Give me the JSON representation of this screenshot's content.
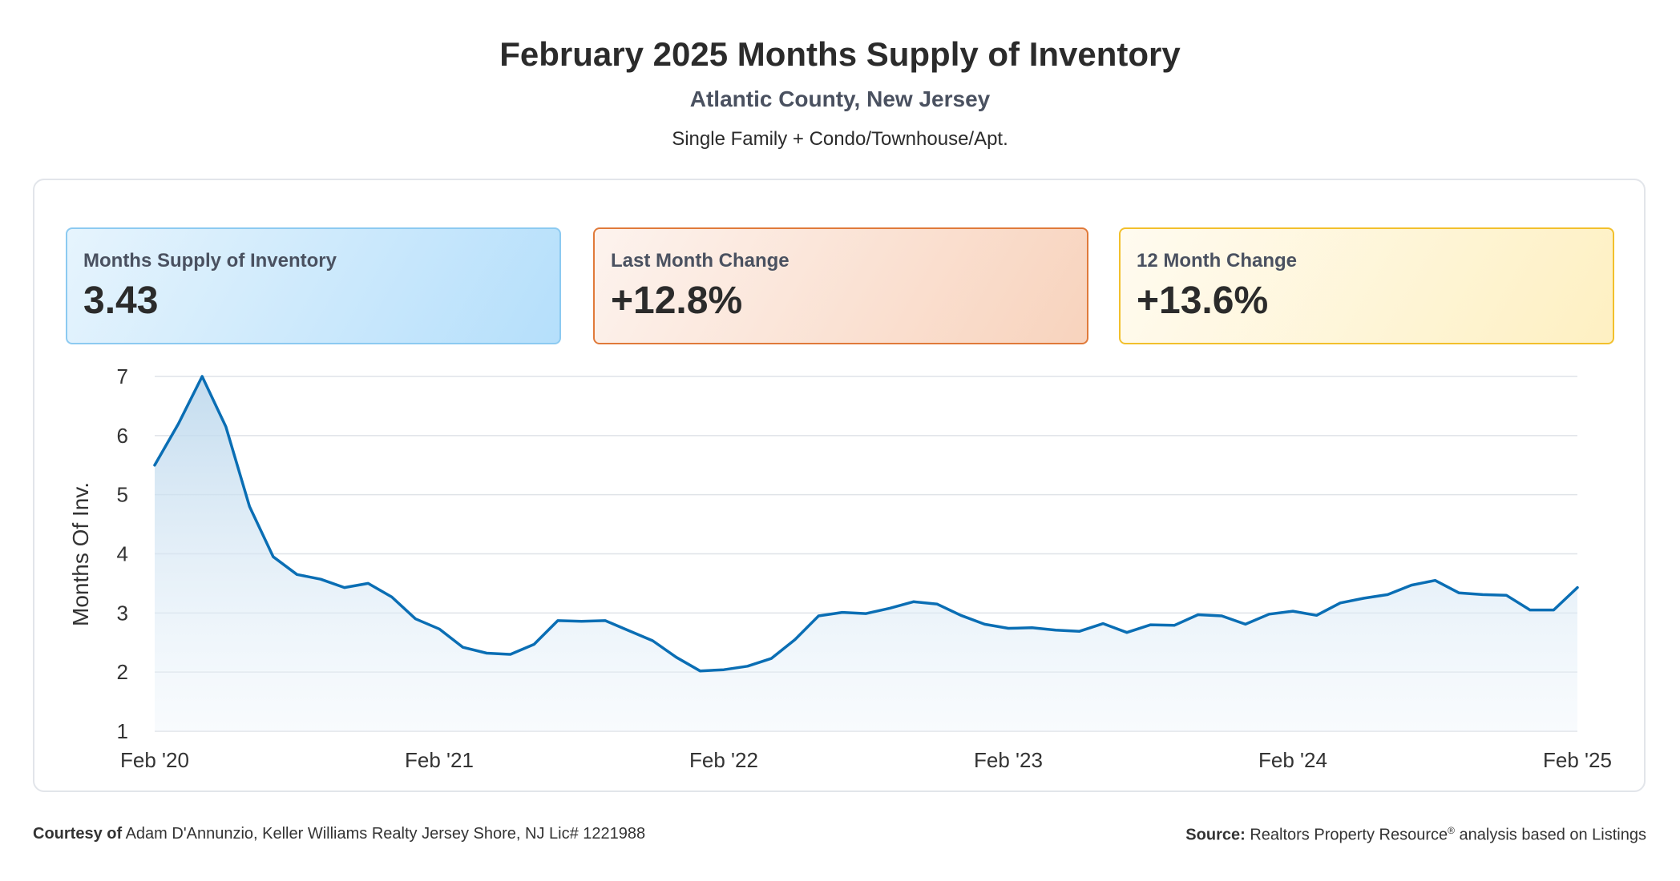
{
  "header": {
    "title": "February 2025 Months Supply of Inventory",
    "subtitle": "Atlantic County, New Jersey",
    "property_types": "Single Family + Condo/Townhouse/Apt."
  },
  "cards": [
    {
      "label": "Months Supply of Inventory",
      "value": "3.43",
      "color": "#8ccaf1"
    },
    {
      "label": "Last Month Change",
      "value": "+12.8%",
      "color": "#e07a3a"
    },
    {
      "label": "12 Month Change",
      "value": "+13.6%",
      "color": "#f2c02c"
    }
  ],
  "footer": {
    "courtesy_label": "Courtesy of",
    "courtesy_text": "Adam D'Annunzio, Keller Williams Realty Jersey Shore, NJ Lic# 1221988",
    "source_label": "Source:",
    "source_text": "Realtors Property Resource",
    "source_mark": "®",
    "source_suffix": "analysis based on Listings"
  },
  "chart_data": {
    "type": "area",
    "title": "",
    "ylabel": "Months Of Inv.",
    "xlabel": "",
    "ylim": [
      1,
      7
    ],
    "yticks": [
      1,
      2,
      3,
      4,
      5,
      6,
      7
    ],
    "x_tick_labels": [
      "Feb '20",
      "Feb '21",
      "Feb '22",
      "Feb '23",
      "Feb '24",
      "Feb '25"
    ],
    "x_tick_month_index": [
      0,
      12,
      24,
      36,
      48,
      60
    ],
    "x_months": [
      "2020-02",
      "2020-03",
      "2020-04",
      "2020-05",
      "2020-06",
      "2020-07",
      "2020-08",
      "2020-09",
      "2020-10",
      "2020-11",
      "2020-12",
      "2021-01",
      "2021-02",
      "2021-03",
      "2021-04",
      "2021-05",
      "2021-06",
      "2021-07",
      "2021-08",
      "2021-09",
      "2021-10",
      "2021-11",
      "2021-12",
      "2022-01",
      "2022-02",
      "2022-03",
      "2022-04",
      "2022-05",
      "2022-06",
      "2022-07",
      "2022-08",
      "2022-09",
      "2022-10",
      "2022-11",
      "2022-12",
      "2023-01",
      "2023-02",
      "2023-03",
      "2023-04",
      "2023-05",
      "2023-06",
      "2023-07",
      "2023-08",
      "2023-09",
      "2023-10",
      "2023-11",
      "2023-12",
      "2024-01",
      "2024-02",
      "2024-03",
      "2024-04",
      "2024-05",
      "2024-06",
      "2024-07",
      "2024-08",
      "2024-09",
      "2024-10",
      "2024-11",
      "2024-12",
      "2025-01",
      "2025-02"
    ],
    "values": [
      5.5,
      6.2,
      7.0,
      6.15,
      4.8,
      3.95,
      3.65,
      3.57,
      3.43,
      3.5,
      3.27,
      2.9,
      2.73,
      2.42,
      2.32,
      2.3,
      2.47,
      2.87,
      2.86,
      2.87,
      2.7,
      2.53,
      2.25,
      2.02,
      2.04,
      2.1,
      2.23,
      2.55,
      2.95,
      3.01,
      2.99,
      3.08,
      3.19,
      3.15,
      2.96,
      2.81,
      2.74,
      2.75,
      2.71,
      2.69,
      2.82,
      2.67,
      2.8,
      2.79,
      2.97,
      2.95,
      2.81,
      2.98,
      3.03,
      2.96,
      3.17,
      3.25,
      3.31,
      3.47,
      3.55,
      3.34,
      3.31,
      3.3,
      3.05,
      3.05,
      3.43
    ],
    "grid": true,
    "line_color": "#0a6eb4"
  }
}
